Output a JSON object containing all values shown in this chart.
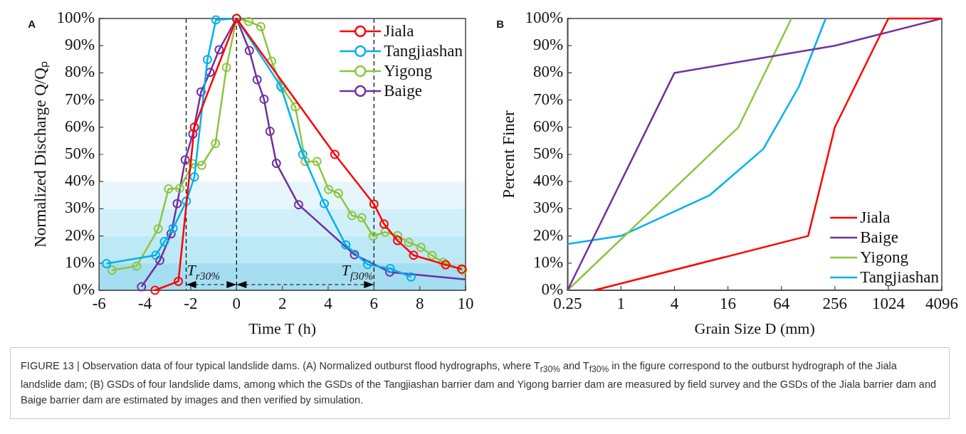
{
  "chart_data": [
    {
      "type": "line",
      "xlabel": "Time T (h)",
      "ylabel": "Normalized Discharge Q/Qₚ",
      "xlim": [
        -6,
        10
      ],
      "xticks": [
        -6,
        -4,
        -2,
        0,
        2,
        4,
        6,
        8,
        10
      ],
      "ylim": [
        0,
        100
      ],
      "yticks": [
        {
          "value": 0,
          "label": "0%"
        },
        {
          "value": 10,
          "label": "10%"
        },
        {
          "value": 20,
          "label": "20%"
        },
        {
          "value": 30,
          "label": "30%"
        },
        {
          "value": 40,
          "label": "40%"
        },
        {
          "value": 50,
          "label": "50%"
        },
        {
          "value": 60,
          "label": "60%"
        },
        {
          "value": 70,
          "label": "70%"
        },
        {
          "value": 80,
          "label": "80%"
        },
        {
          "value": 90,
          "label": "90%"
        },
        {
          "value": 100,
          "label": "100%"
        }
      ],
      "legend": "top right",
      "marker": "circle",
      "series": [
        {
          "name": "Jiala",
          "color": "#ff0000",
          "x": [
            -3.56,
            -2.54,
            -1.84,
            0,
            4.29,
            6,
            6.44,
            7.03,
            7.73,
            9.13,
            9.83
          ],
          "values": [
            0,
            3.3,
            60,
            100,
            50,
            31.7,
            24.4,
            18.3,
            12.9,
            9.4,
            7.8
          ]
        },
        {
          "name": "Tangjiashan",
          "color": "#00b0f0",
          "x": [
            -5.68,
            -3.53,
            -3.15,
            -2.77,
            -2.19,
            -1.84,
            -1.27,
            -0.9,
            0,
            1.93,
            2.89,
            3.83,
            4.77,
            5.72,
            6.71,
            7.62
          ],
          "values": [
            9.8,
            12.9,
            17.9,
            22.8,
            32.8,
            41.7,
            84.9,
            99.5,
            100,
            75.1,
            50,
            31.9,
            16.7,
            9.5,
            8,
            4.9
          ]
        },
        {
          "name": "Yigong",
          "color": "#8cc63f",
          "x": [
            -5.44,
            -4.36,
            -3.42,
            -2.97,
            -2.48,
            -1.91,
            -1.52,
            -0.92,
            -0.44,
            0,
            0.53,
            1.06,
            1.53,
            2.0,
            2.57,
            3.0,
            3.51,
            4.02,
            4.45,
            5.04,
            5.47,
            5.96,
            6.49,
            7.03,
            7.52,
            8.05,
            8.54,
            9.02,
            9.88
          ],
          "values": [
            7.4,
            8.9,
            22.6,
            37.3,
            37.5,
            46.5,
            46,
            54,
            82,
            100,
            98.9,
            97,
            84.3,
            74.4,
            67.5,
            47.4,
            47.4,
            37.1,
            35.7,
            27.5,
            26.7,
            19.9,
            21.4,
            20.1,
            17.6,
            15.8,
            12.8,
            10.3,
            7.4
          ]
        },
        {
          "name": "Baige",
          "color": "#7030a0",
          "x": [
            -4.15,
            -3.35,
            -2.86,
            -2.59,
            -2.24,
            -1.91,
            -1.55,
            -1.16,
            -0.76,
            0,
            0.56,
            0.9,
            1.2,
            1.46,
            1.74,
            2.71,
            5.15,
            6.69
          ],
          "values": [
            1.3,
            11,
            20.8,
            31.9,
            48,
            57.5,
            73,
            80.2,
            88.5,
            100,
            88.2,
            77.5,
            70.3,
            58.5,
            46.7,
            31.5,
            13.1,
            6.7
          ]
        },
        {
          "type": "line",
          "marker": "none",
          "color": "#7030a0",
          "x": [
            6.69,
            10
          ],
          "values": [
            6.7,
            4
          ]
        }
      ],
      "bands": [
        {
          "axis": "y",
          "from": 0,
          "to": 10,
          "color": "#a6def1"
        },
        {
          "axis": "y",
          "from": 10,
          "to": 20,
          "color": "#bde8f6"
        },
        {
          "axis": "y",
          "from": 20,
          "to": 30,
          "color": "#d1eff9"
        },
        {
          "axis": "y",
          "from": 30,
          "to": 40,
          "color": "#e6f6fc"
        }
      ],
      "ref_lines": [
        {
          "axis": "x",
          "value": -2.2,
          "color": "#000000",
          "line_style": "dashed"
        },
        {
          "axis": "x",
          "value": 0,
          "color": "#000000",
          "line_style": "dashed"
        },
        {
          "axis": "x",
          "value": 6,
          "color": "#000000",
          "line_style": "dashed"
        }
      ],
      "annotations": [
        "A",
        "FIGURE 13 | Observation data of four typical landslide dams. (A) Normalized outburst flood hydrographs, where T$_{r30%}$ and T$_{f30%}$ in the figure correspond to the outburst hydrograph of the Jiala landslide dam; (B) GSDs of four landslide dams, among which the GSDs of the Tangjiashan barrier dam and Yigong barrier dam are measured by field survey and the GSDs of the Jiala barrier dam and Baige barrier dam are estimated by images and then verified by simulation.",
        {
          "text": "T$_{r30%}$",
          "x": -2.2,
          "y": 7
        },
        {
          "text": "T$_{f30%}$",
          "x": 6,
          "y": 7
        }
      ]
    },
    {
      "type": "line",
      "xlabel": "Grain Size D (mm)",
      "ylabel": "Percent Finer",
      "log": "x",
      "xlim": [
        0.25,
        4096
      ],
      "xticks": [
        0.25,
        1,
        4,
        16,
        64,
        256,
        1024,
        4096
      ],
      "ylim": [
        0,
        100
      ],
      "yticks": [
        {
          "value": 0,
          "label": "0%"
        },
        {
          "value": 10,
          "label": "10%"
        },
        {
          "value": 20,
          "label": "20%"
        },
        {
          "value": 30,
          "label": "30%"
        },
        {
          "value": 40,
          "label": "40%"
        },
        {
          "value": 50,
          "label": "50%"
        },
        {
          "value": 60,
          "label": "60%"
        },
        {
          "value": 70,
          "label": "70%"
        },
        {
          "value": 80,
          "label": "80%"
        },
        {
          "value": 90,
          "label": "90%"
        },
        {
          "value": 100,
          "label": "100%"
        }
      ],
      "legend": "bottom right",
      "series": [
        {
          "name": "Jiala",
          "color": "#ff0000",
          "x": [
            0.5,
            128,
            256,
            1024,
            4096
          ],
          "values": [
            0,
            20,
            60,
            100,
            100
          ]
        },
        {
          "name": "Baige",
          "color": "#7030a0",
          "x": [
            0.25,
            4,
            256,
            4096
          ],
          "values": [
            0,
            80,
            90,
            100
          ]
        },
        {
          "name": "Yigong",
          "color": "#8cc63f",
          "x": [
            0.25,
            21,
            83
          ],
          "values": [
            0,
            60,
            100
          ]
        },
        {
          "name": "Tangjiashan",
          "color": "#00b0f0",
          "x": [
            0.25,
            1,
            10,
            40,
            101,
            202
          ],
          "values": [
            17,
            20,
            35,
            52,
            75,
            100
          ]
        }
      ],
      "annotations": [
        "B"
      ]
    }
  ]
}
